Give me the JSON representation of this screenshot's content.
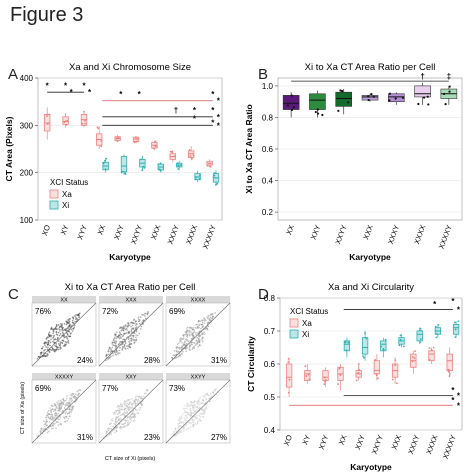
{
  "figure_title": "Figure 3",
  "panel_letters": [
    "A",
    "B",
    "C",
    "D"
  ],
  "chart_data": [
    {
      "panel": "A",
      "type": "box",
      "title": "Xa and Xi Chromosome Size",
      "xlabel": "Karyotype",
      "ylabel": "CT Area (Pixels)",
      "ylim": [
        100,
        400
      ],
      "yticks": [
        "100",
        "200",
        "300",
        "400"
      ],
      "categories": [
        "XO",
        "XY",
        "XYY",
        "XX",
        "XXY",
        "XXYY",
        "XXX",
        "XXXY",
        "XXXX",
        "XXXXY"
      ],
      "legend": {
        "title": "XCI Status",
        "entries": [
          "Xa",
          "Xi"
        ],
        "placement": "bottom-left inside"
      },
      "colors": {
        "Xa": "#f08080",
        "Xi": "#2ab0b0"
      },
      "series": [
        {
          "name": "Xa",
          "boxes": [
            {
              "cat": "XO",
              "q1": 288,
              "med": 305,
              "q3": 323,
              "lo": 270,
              "hi": 338
            },
            {
              "cat": "XY",
              "q1": 302,
              "med": 308,
              "q3": 318,
              "lo": 295,
              "hi": 326
            },
            {
              "cat": "XYY",
              "q1": 300,
              "med": 312,
              "q3": 323,
              "lo": 296,
              "hi": 330
            },
            {
              "cat": "XX",
              "q1": 258,
              "med": 270,
              "q3": 282,
              "lo": 250,
              "hi": 298
            },
            {
              "cat": "XXY",
              "q1": 268,
              "med": 272,
              "q3": 276,
              "lo": 265,
              "hi": 280
            },
            {
              "cat": "XXYY",
              "q1": 266,
              "med": 271,
              "q3": 275,
              "lo": 262,
              "hi": 278
            },
            {
              "cat": "XXX",
              "q1": 252,
              "med": 258,
              "q3": 264,
              "lo": 248,
              "hi": 268
            },
            {
              "cat": "XXXY",
              "q1": 228,
              "med": 234,
              "q3": 240,
              "lo": 222,
              "hi": 248
            },
            {
              "cat": "XXXX",
              "q1": 232,
              "med": 240,
              "q3": 246,
              "lo": 226,
              "hi": 256
            },
            {
              "cat": "XXXXY",
              "q1": 216,
              "med": 220,
              "q3": 224,
              "lo": 212,
              "hi": 228
            }
          ]
        },
        {
          "name": "Xi",
          "boxes": [
            {
              "cat": "XX",
              "q1": 206,
              "med": 214,
              "q3": 222,
              "lo": 200,
              "hi": 230
            },
            {
              "cat": "XXY",
              "q1": 202,
              "med": 214,
              "q3": 234,
              "lo": 195,
              "hi": 238
            },
            {
              "cat": "XXYY",
              "q1": 212,
              "med": 220,
              "q3": 228,
              "lo": 205,
              "hi": 236
            },
            {
              "cat": "XXX",
              "q1": 206,
              "med": 212,
              "q3": 218,
              "lo": 200,
              "hi": 222
            },
            {
              "cat": "XXXY",
              "q1": 212,
              "med": 216,
              "q3": 220,
              "lo": 205,
              "hi": 225
            },
            {
              "cat": "XXXX",
              "q1": 185,
              "med": 191,
              "q3": 198,
              "lo": 180,
              "hi": 204
            },
            {
              "cat": "XXXXY",
              "q1": 180,
              "med": 189,
              "q3": 198,
              "lo": 172,
              "hi": 205
            }
          ]
        }
      ],
      "significance_lines": [
        {
          "from": "XO",
          "to": "XY",
          "y": 370,
          "color": "#222",
          "mark": "*"
        },
        {
          "from": "XY",
          "to": "XYY",
          "y": 370,
          "color": "#222",
          "mark": "*"
        },
        {
          "from": "XX",
          "to": "XXXXY",
          "y": 352,
          "color": "#e05050",
          "mark": "*"
        },
        {
          "from": "XX",
          "to": "XXXXY",
          "y": 318,
          "color": "#222",
          "mark": "*"
        },
        {
          "from": "XX",
          "to": "XXXXY",
          "y": 300,
          "color": "#222",
          "mark": "*"
        }
      ],
      "annotations": [
        "*",
        "*",
        "*",
        "*",
        "*",
        "*",
        "†",
        "*",
        "*",
        "*",
        "*"
      ]
    },
    {
      "panel": "B",
      "type": "box",
      "title": "Xi to Xa CT Area Ratio per Cell",
      "xlabel": "Karyotype",
      "ylabel": "Xi to Xa CT Area Ratio",
      "ylim": [
        0.15,
        1.05
      ],
      "yticks": [
        "0.2",
        "0.4",
        "0.6",
        "0.8",
        "1.0"
      ],
      "categories": [
        "XX",
        "XXY",
        "XXYY",
        "XXX",
        "XXXY",
        "XXXX",
        "XXXXY"
      ],
      "colors": [
        "#5b1a7a",
        "#2e8b3e",
        "#136b2b",
        "#bfa0d8",
        "#b58fd6",
        "#e8d0ee",
        "#a8dcb8"
      ],
      "boxes": [
        {
          "cat": "XX",
          "q1": 0.85,
          "med": 0.89,
          "q3": 0.94,
          "lo": 0.8,
          "hi": 0.96
        },
        {
          "cat": "XXY",
          "q1": 0.85,
          "med": 0.91,
          "q3": 0.95,
          "lo": 0.8,
          "hi": 0.97
        },
        {
          "cat": "XXYY",
          "q1": 0.87,
          "med": 0.92,
          "q3": 0.96,
          "lo": 0.82,
          "hi": 0.98
        },
        {
          "cat": "XXX",
          "q1": 0.91,
          "med": 0.93,
          "q3": 0.94,
          "lo": 0.9,
          "hi": 0.95
        },
        {
          "cat": "XXXY",
          "q1": 0.9,
          "med": 0.93,
          "q3": 0.95,
          "lo": 0.88,
          "hi": 0.96
        },
        {
          "cat": "XXXX",
          "q1": 0.93,
          "med": 0.95,
          "q3": 1.0,
          "lo": 0.88,
          "hi": 1.02
        },
        {
          "cat": "XXXXY",
          "q1": 0.92,
          "med": 0.95,
          "q3": 0.98,
          "lo": 0.88,
          "hi": 1.0
        }
      ],
      "significance_line": {
        "from": "XX",
        "to": "XXXXY",
        "y": 1.03
      },
      "annotations": [
        "†",
        "‡"
      ]
    },
    {
      "panel": "C",
      "type": "scatter",
      "title": "Xi to Xa CT Area Ratio per Cell",
      "xlabel": "CT size of Xi (pixels)",
      "ylabel": "CT size of Xa (pixels)",
      "facets": [
        {
          "strip": "XX",
          "upper_pct": "76%",
          "lower_pct": "24%",
          "shade": "#3a3a3a"
        },
        {
          "strip": "XXX",
          "upper_pct": "72%",
          "lower_pct": "28%",
          "shade": "#6a6a6a"
        },
        {
          "strip": "XXXX",
          "upper_pct": "69%",
          "lower_pct": "31%",
          "shade": "#8c8c8c"
        },
        {
          "strip": "XXXXY",
          "upper_pct": "69%",
          "lower_pct": "31%",
          "shade": "#9a9a9a"
        },
        {
          "strip": "XXY",
          "upper_pct": "77%",
          "lower_pct": "23%",
          "shade": "#b0b0b0"
        },
        {
          "strip": "XXYY",
          "upper_pct": "73%",
          "lower_pct": "27%",
          "shade": "#c8c8c8"
        }
      ]
    },
    {
      "panel": "D",
      "type": "box",
      "title": "Xa and Xi Circularity",
      "xlabel": "Karyotype",
      "ylabel": "CT Circularity",
      "ylim": [
        0.4,
        0.8
      ],
      "yticks": [
        "0.4",
        "0.5",
        "0.6",
        "0.7",
        "0.8"
      ],
      "categories": [
        "XO",
        "XY",
        "XYY",
        "XX",
        "XXY",
        "XXYY",
        "XXX",
        "XXXY",
        "XXXX",
        "XXXXY"
      ],
      "legend": {
        "title": "XCI Status",
        "entries": [
          "Xa",
          "Xi"
        ],
        "placement": "top-left inside"
      },
      "colors": {
        "Xa": "#f08080",
        "Xi": "#2ab0b0"
      },
      "series": [
        {
          "name": "Xa",
          "boxes": [
            {
              "cat": "XO",
              "q1": 0.53,
              "med": 0.56,
              "q3": 0.6,
              "lo": 0.5,
              "hi": 0.62
            },
            {
              "cat": "XY",
              "q1": 0.55,
              "med": 0.57,
              "q3": 0.58,
              "lo": 0.54,
              "hi": 0.6
            },
            {
              "cat": "XYY",
              "q1": 0.55,
              "med": 0.56,
              "q3": 0.58,
              "lo": 0.53,
              "hi": 0.59
            },
            {
              "cat": "XX",
              "q1": 0.55,
              "med": 0.57,
              "q3": 0.59,
              "lo": 0.52,
              "hi": 0.6
            },
            {
              "cat": "XXY",
              "q1": 0.56,
              "med": 0.57,
              "q3": 0.58,
              "lo": 0.55,
              "hi": 0.6
            },
            {
              "cat": "XXYY",
              "q1": 0.57,
              "med": 0.58,
              "q3": 0.61,
              "lo": 0.55,
              "hi": 0.63
            },
            {
              "cat": "XXX",
              "q1": 0.56,
              "med": 0.58,
              "q3": 0.6,
              "lo": 0.54,
              "hi": 0.62
            },
            {
              "cat": "XXXY",
              "q1": 0.59,
              "med": 0.61,
              "q3": 0.63,
              "lo": 0.57,
              "hi": 0.64
            },
            {
              "cat": "XXXX",
              "q1": 0.61,
              "med": 0.63,
              "q3": 0.64,
              "lo": 0.6,
              "hi": 0.65
            },
            {
              "cat": "XXXXY",
              "q1": 0.58,
              "med": 0.61,
              "q3": 0.63,
              "lo": 0.56,
              "hi": 0.65
            }
          ]
        },
        {
          "name": "Xi",
          "boxes": [
            {
              "cat": "XX",
              "q1": 0.64,
              "med": 0.66,
              "q3": 0.67,
              "lo": 0.62,
              "hi": 0.68
            },
            {
              "cat": "XXY",
              "q1": 0.63,
              "med": 0.65,
              "q3": 0.68,
              "lo": 0.61,
              "hi": 0.7
            },
            {
              "cat": "XXYY",
              "q1": 0.64,
              "med": 0.66,
              "q3": 0.67,
              "lo": 0.62,
              "hi": 0.68
            },
            {
              "cat": "XXX",
              "q1": 0.66,
              "med": 0.67,
              "q3": 0.68,
              "lo": 0.65,
              "hi": 0.69
            },
            {
              "cat": "XXXY",
              "q1": 0.67,
              "med": 0.69,
              "q3": 0.7,
              "lo": 0.66,
              "hi": 0.71
            },
            {
              "cat": "XXXX",
              "q1": 0.69,
              "med": 0.7,
              "q3": 0.71,
              "lo": 0.68,
              "hi": 0.72
            },
            {
              "cat": "XXXXY",
              "q1": 0.69,
              "med": 0.71,
              "q3": 0.72,
              "lo": 0.68,
              "hi": 0.73
            }
          ]
        }
      ],
      "significance_lines": [
        {
          "from": "XX",
          "to": "XXXXY",
          "y": 0.765,
          "color": "#222",
          "mark": "*"
        },
        {
          "from": "XX",
          "to": "XXXXY",
          "y": 0.505,
          "color": "#222",
          "mark": "*"
        },
        {
          "from": "XO",
          "to": "XXXXY",
          "y": 0.475,
          "color": "#e05050",
          "mark": "*"
        }
      ],
      "annotations": [
        "*",
        "*",
        "*",
        "*"
      ]
    }
  ]
}
